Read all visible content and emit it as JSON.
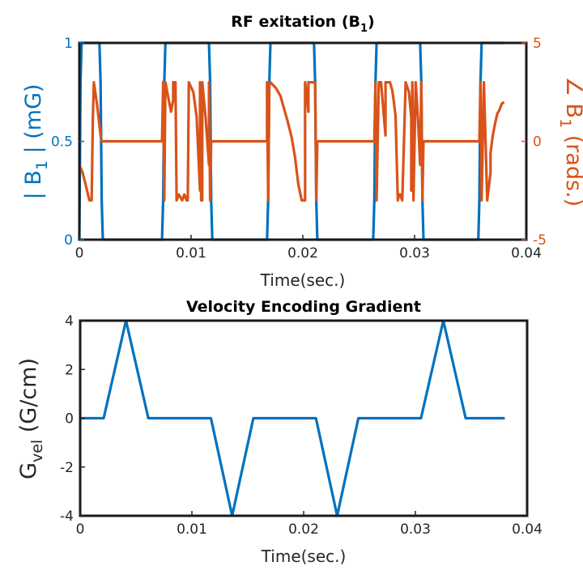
{
  "colors": {
    "blue": "#0072BD",
    "orange": "#D95319",
    "axis": "#262626",
    "frame": "#1a1a1a"
  },
  "chart_data": [
    {
      "type": "line",
      "title": {
        "main": "RF exitation (B",
        "sub": "1",
        "close": ")"
      },
      "xlabel": "Time(sec.)",
      "ylabel_left": {
        "pre": "| B",
        "sub": "1",
        "post": " | (mG)"
      },
      "ylabel_right": {
        "pre": "∠ B",
        "sub": "1",
        "post": " (rads.)"
      },
      "xlim": [
        0,
        0.04
      ],
      "ylim_left": [
        0,
        1
      ],
      "ylim_right": [
        -5,
        5
      ],
      "xticks": [
        "0",
        "0.01",
        "0.02",
        "0.03",
        "0.04"
      ],
      "yticks_left": [
        "0",
        "0.5",
        "1"
      ],
      "yticks_right": [
        "-5",
        "0",
        "5"
      ],
      "series": [
        {
          "axis": "left",
          "color": "#0072BD",
          "x": [
            0,
            0.0001,
            0.0002,
            0.0009,
            0.001,
            0.0011,
            0.0018,
            0.0019,
            0.002,
            0.0021,
            0.0074,
            0.0075,
            0.0076,
            0.0077,
            0.0084,
            0.0085,
            0.0086,
            0.0108,
            0.0109,
            0.011,
            0.0116,
            0.0117,
            0.0118,
            0.0119,
            0.0168,
            0.0169,
            0.017,
            0.0171,
            0.0178,
            0.0179,
            0.018,
            0.0202,
            0.0203,
            0.0204,
            0.021,
            0.0211,
            0.0212,
            0.0213,
            0.0263,
            0.0264,
            0.0265,
            0.0266,
            0.0273,
            0.0274,
            0.0275,
            0.0297,
            0.0298,
            0.0299,
            0.0305,
            0.0306,
            0.0307,
            0.0308,
            0.0357,
            0.0358,
            0.0359,
            0.036,
            0.0367,
            0.0368,
            0.0369,
            0.038
          ],
          "y": [
            0,
            0.8,
            1,
            1,
            1,
            1,
            1,
            0.8,
            0.2,
            0,
            0,
            0.2,
            0.8,
            1,
            1,
            1,
            1,
            1,
            1,
            1,
            1,
            0.8,
            0.2,
            0,
            0,
            0.2,
            0.8,
            1,
            1,
            1,
            1,
            1,
            1,
            1,
            1,
            0.8,
            0.2,
            0,
            0,
            0.2,
            0.8,
            1,
            1,
            1,
            1,
            1,
            1,
            1,
            1,
            0.8,
            0.2,
            0,
            0,
            0.2,
            0.8,
            1,
            1,
            1,
            1,
            1
          ]
        },
        {
          "axis": "right",
          "color": "#D95319",
          "x": [
            0,
            0.0003,
            0.0006,
            0.0009,
            0.0011,
            0.0012,
            0.0013,
            0.0016,
            0.0019,
            0.002,
            0.0021,
            0.0074,
            0.0075,
            0.0076,
            0.0077,
            0.0077,
            0.0082,
            0.0084,
            0.0084,
            0.0086,
            0.0087,
            0.0089,
            0.0092,
            0.0094,
            0.0096,
            0.0097,
            0.0098,
            0.0102,
            0.0105,
            0.0108,
            0.0108,
            0.0109,
            0.011,
            0.011,
            0.0113,
            0.0116,
            0.0116,
            0.0117,
            0.0118,
            0.0119,
            0.0168,
            0.0168,
            0.0169,
            0.017,
            0.0171,
            0.0176,
            0.018,
            0.0183,
            0.0186,
            0.019,
            0.0193,
            0.0196,
            0.0199,
            0.0202,
            0.0202,
            0.0204,
            0.0205,
            0.0205,
            0.0211,
            0.0212,
            0.0213,
            0.0264,
            0.0265,
            0.0266,
            0.0268,
            0.027,
            0.0272,
            0.0274,
            0.0274,
            0.0278,
            0.028,
            0.0281,
            0.0283,
            0.0285,
            0.0286,
            0.0287,
            0.0289,
            0.0292,
            0.0295,
            0.0297,
            0.0297,
            0.0298,
            0.0299,
            0.0299,
            0.0301,
            0.0303,
            0.0305,
            0.0306,
            0.0307,
            0.0308,
            0.0357,
            0.0358,
            0.0359,
            0.036,
            0.0362,
            0.0365,
            0.0368,
            0.0368,
            0.037,
            0.0372,
            0.0374,
            0.0376,
            0.0378,
            0.038
          ],
          "y": [
            -1.2,
            -1.6,
            -2.3,
            -3,
            -3,
            1,
            3,
            1.8,
            0.3,
            0,
            0,
            0,
            3,
            -3,
            3,
            3,
            1.5,
            2.1,
            3,
            3,
            -3,
            -2.7,
            -3,
            -2.7,
            -3,
            -3,
            3,
            2.5,
            1.2,
            -2.5,
            3,
            -3,
            -3,
            3,
            1.2,
            -1.2,
            3,
            -3,
            0,
            0,
            0,
            3,
            -3,
            3,
            3,
            2.7,
            2.3,
            1.7,
            1.1,
            0.2,
            -0.8,
            -2.2,
            -3,
            -3,
            3,
            2.1,
            1.5,
            3,
            3,
            -3,
            0,
            0,
            3,
            -3,
            3,
            3,
            1.6,
            0.3,
            3,
            3,
            2.6,
            2.2,
            1.3,
            -3,
            -2.7,
            -2.7,
            -3,
            3,
            2.5,
            1.2,
            -2.5,
            3,
            -3,
            -3,
            3,
            1.2,
            -1.2,
            3,
            -3,
            0,
            0,
            0,
            3,
            -3,
            3,
            -3,
            -1.6,
            -0.6,
            0.3,
            0.9,
            1.4,
            1.6,
            1.9,
            2
          ]
        }
      ],
      "grid": false
    },
    {
      "type": "line",
      "title": "Velocity Encoding Gradient",
      "xlabel": "Time(sec.)",
      "ylabel": {
        "pre": "G",
        "sub": "vel",
        "post": " (G/cm)"
      },
      "xlim": [
        0,
        0.04
      ],
      "ylim": [
        -4,
        4
      ],
      "xticks": [
        "0",
        "0.01",
        "0.02",
        "0.03",
        "0.04"
      ],
      "yticks": [
        "-4",
        "-2",
        "0",
        "2",
        "4"
      ],
      "series": [
        {
          "color": "#0072BD",
          "x": [
            0,
            0.0021,
            0.0041,
            0.0061,
            0.0117,
            0.0136,
            0.0155,
            0.0211,
            0.023,
            0.0249,
            0.0305,
            0.0325,
            0.0345,
            0.038
          ],
          "y": [
            0,
            0,
            4,
            0,
            0,
            -4,
            0,
            0,
            -4,
            0,
            0,
            4,
            0,
            0
          ]
        }
      ],
      "grid": false
    }
  ]
}
